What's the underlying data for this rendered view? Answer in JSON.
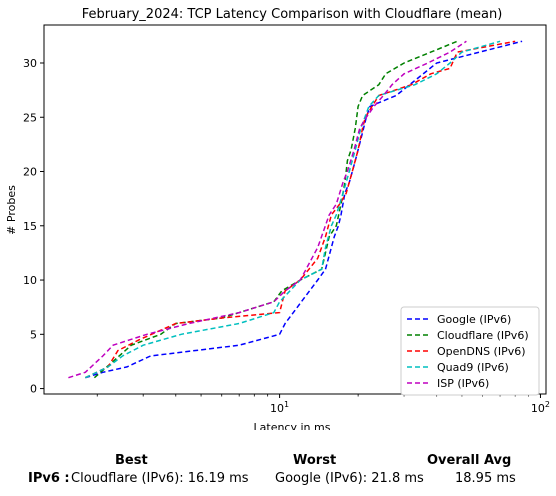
{
  "chart_data": {
    "type": "line",
    "title": "February_2024: TCP Latency Comparison with Cloudflare (mean)",
    "xlabel": "Latency in ms",
    "ylabel": "# Probes",
    "x_scale": "log",
    "xlim": [
      1.25,
      105
    ],
    "ylim": [
      -0.5,
      33.5
    ],
    "x_ticks": [
      10,
      100
    ],
    "x_tick_labels": [
      "10^1",
      "10^2"
    ],
    "y_ticks": [
      0,
      5,
      10,
      15,
      20,
      25,
      30
    ],
    "grid": false,
    "legend_position": "lower-right",
    "series": [
      {
        "name": "Google (IPv6)",
        "color": "#0000ff",
        "x": [
          1.8,
          2.1,
          2.6,
          3.2,
          7,
          10,
          10.5,
          14,
          15,
          16.2,
          16.8,
          17.2,
          17.8,
          18.5,
          19.5,
          20.5,
          21.5,
          22.2,
          28,
          40,
          85
        ],
        "y": [
          1,
          1.5,
          2,
          3,
          4,
          5,
          6,
          10,
          11,
          14,
          15,
          16,
          18,
          19,
          21,
          23,
          25,
          26,
          27,
          30,
          32
        ]
      },
      {
        "name": "Cloudflare (IPv6)",
        "color": "#008000",
        "x": [
          1.95,
          2.3,
          2.7,
          3.5,
          4,
          6,
          9.5,
          10.2,
          12,
          14.5,
          15.5,
          16.5,
          17.2,
          17.8,
          18.2,
          18.8,
          19.5,
          20,
          20.8,
          24,
          25.5,
          30,
          38,
          48
        ],
        "y": [
          1,
          2.5,
          4,
          5,
          6,
          6.5,
          8,
          9,
          10,
          11,
          14,
          15,
          17,
          19,
          21,
          22,
          24,
          26,
          27,
          28,
          29,
          30,
          31,
          32
        ]
      },
      {
        "name": "OpenDNS (IPv6)",
        "color": "#ff0000",
        "x": [
          1.8,
          2.2,
          2.4,
          2.9,
          3.6,
          4,
          6,
          10,
          10.5,
          12,
          14,
          15,
          15.8,
          17,
          18,
          19,
          20,
          20.8,
          21.3,
          24,
          32,
          38,
          45,
          48,
          80
        ],
        "y": [
          1,
          2,
          3.5,
          4.5,
          5.5,
          6,
          6.5,
          7,
          9,
          10,
          12,
          14,
          16,
          17,
          18,
          20,
          22,
          24,
          25,
          27,
          28,
          29,
          29.5,
          31,
          32
        ]
      },
      {
        "name": "Quad9 (IPv6)",
        "color": "#00bfbf",
        "x": [
          1.8,
          2.2,
          2.5,
          3,
          4.2,
          7,
          9.5,
          10,
          12,
          14.5,
          15,
          15.8,
          16.5,
          17.5,
          18.5,
          19.5,
          20.5,
          22,
          24,
          33,
          40,
          45,
          50,
          70
        ],
        "y": [
          1,
          2,
          3,
          4,
          5,
          6,
          7,
          8,
          10,
          11,
          13,
          15,
          16,
          18,
          20,
          22,
          24,
          26,
          27,
          28,
          29,
          30,
          31,
          32
        ]
      },
      {
        "name": "ISP (IPv6)",
        "color": "#bf00bf",
        "x": [
          1.55,
          1.8,
          2.1,
          2.3,
          3.1,
          4.5,
          7,
          9.5,
          10.5,
          12,
          14,
          15.5,
          16.5,
          17.5,
          18.2,
          19.3,
          20.3,
          21.5,
          23,
          25,
          27,
          30,
          37,
          45,
          52
        ],
        "y": [
          1,
          1.5,
          3,
          4,
          5,
          6,
          7,
          8,
          9,
          10,
          13,
          16,
          17,
          19,
          20,
          22,
          24,
          25,
          26,
          27,
          28,
          29,
          30,
          31,
          32
        ]
      }
    ]
  },
  "summary": {
    "header_best": "Best",
    "header_worst": "Worst",
    "header_avg": "Overall Avg",
    "row_label": "IPv6 :",
    "best_value": "Cloudflare (IPv6): 16.19 ms",
    "worst_value": "Google (IPv6): 21.8 ms",
    "avg_value": "18.95 ms"
  }
}
